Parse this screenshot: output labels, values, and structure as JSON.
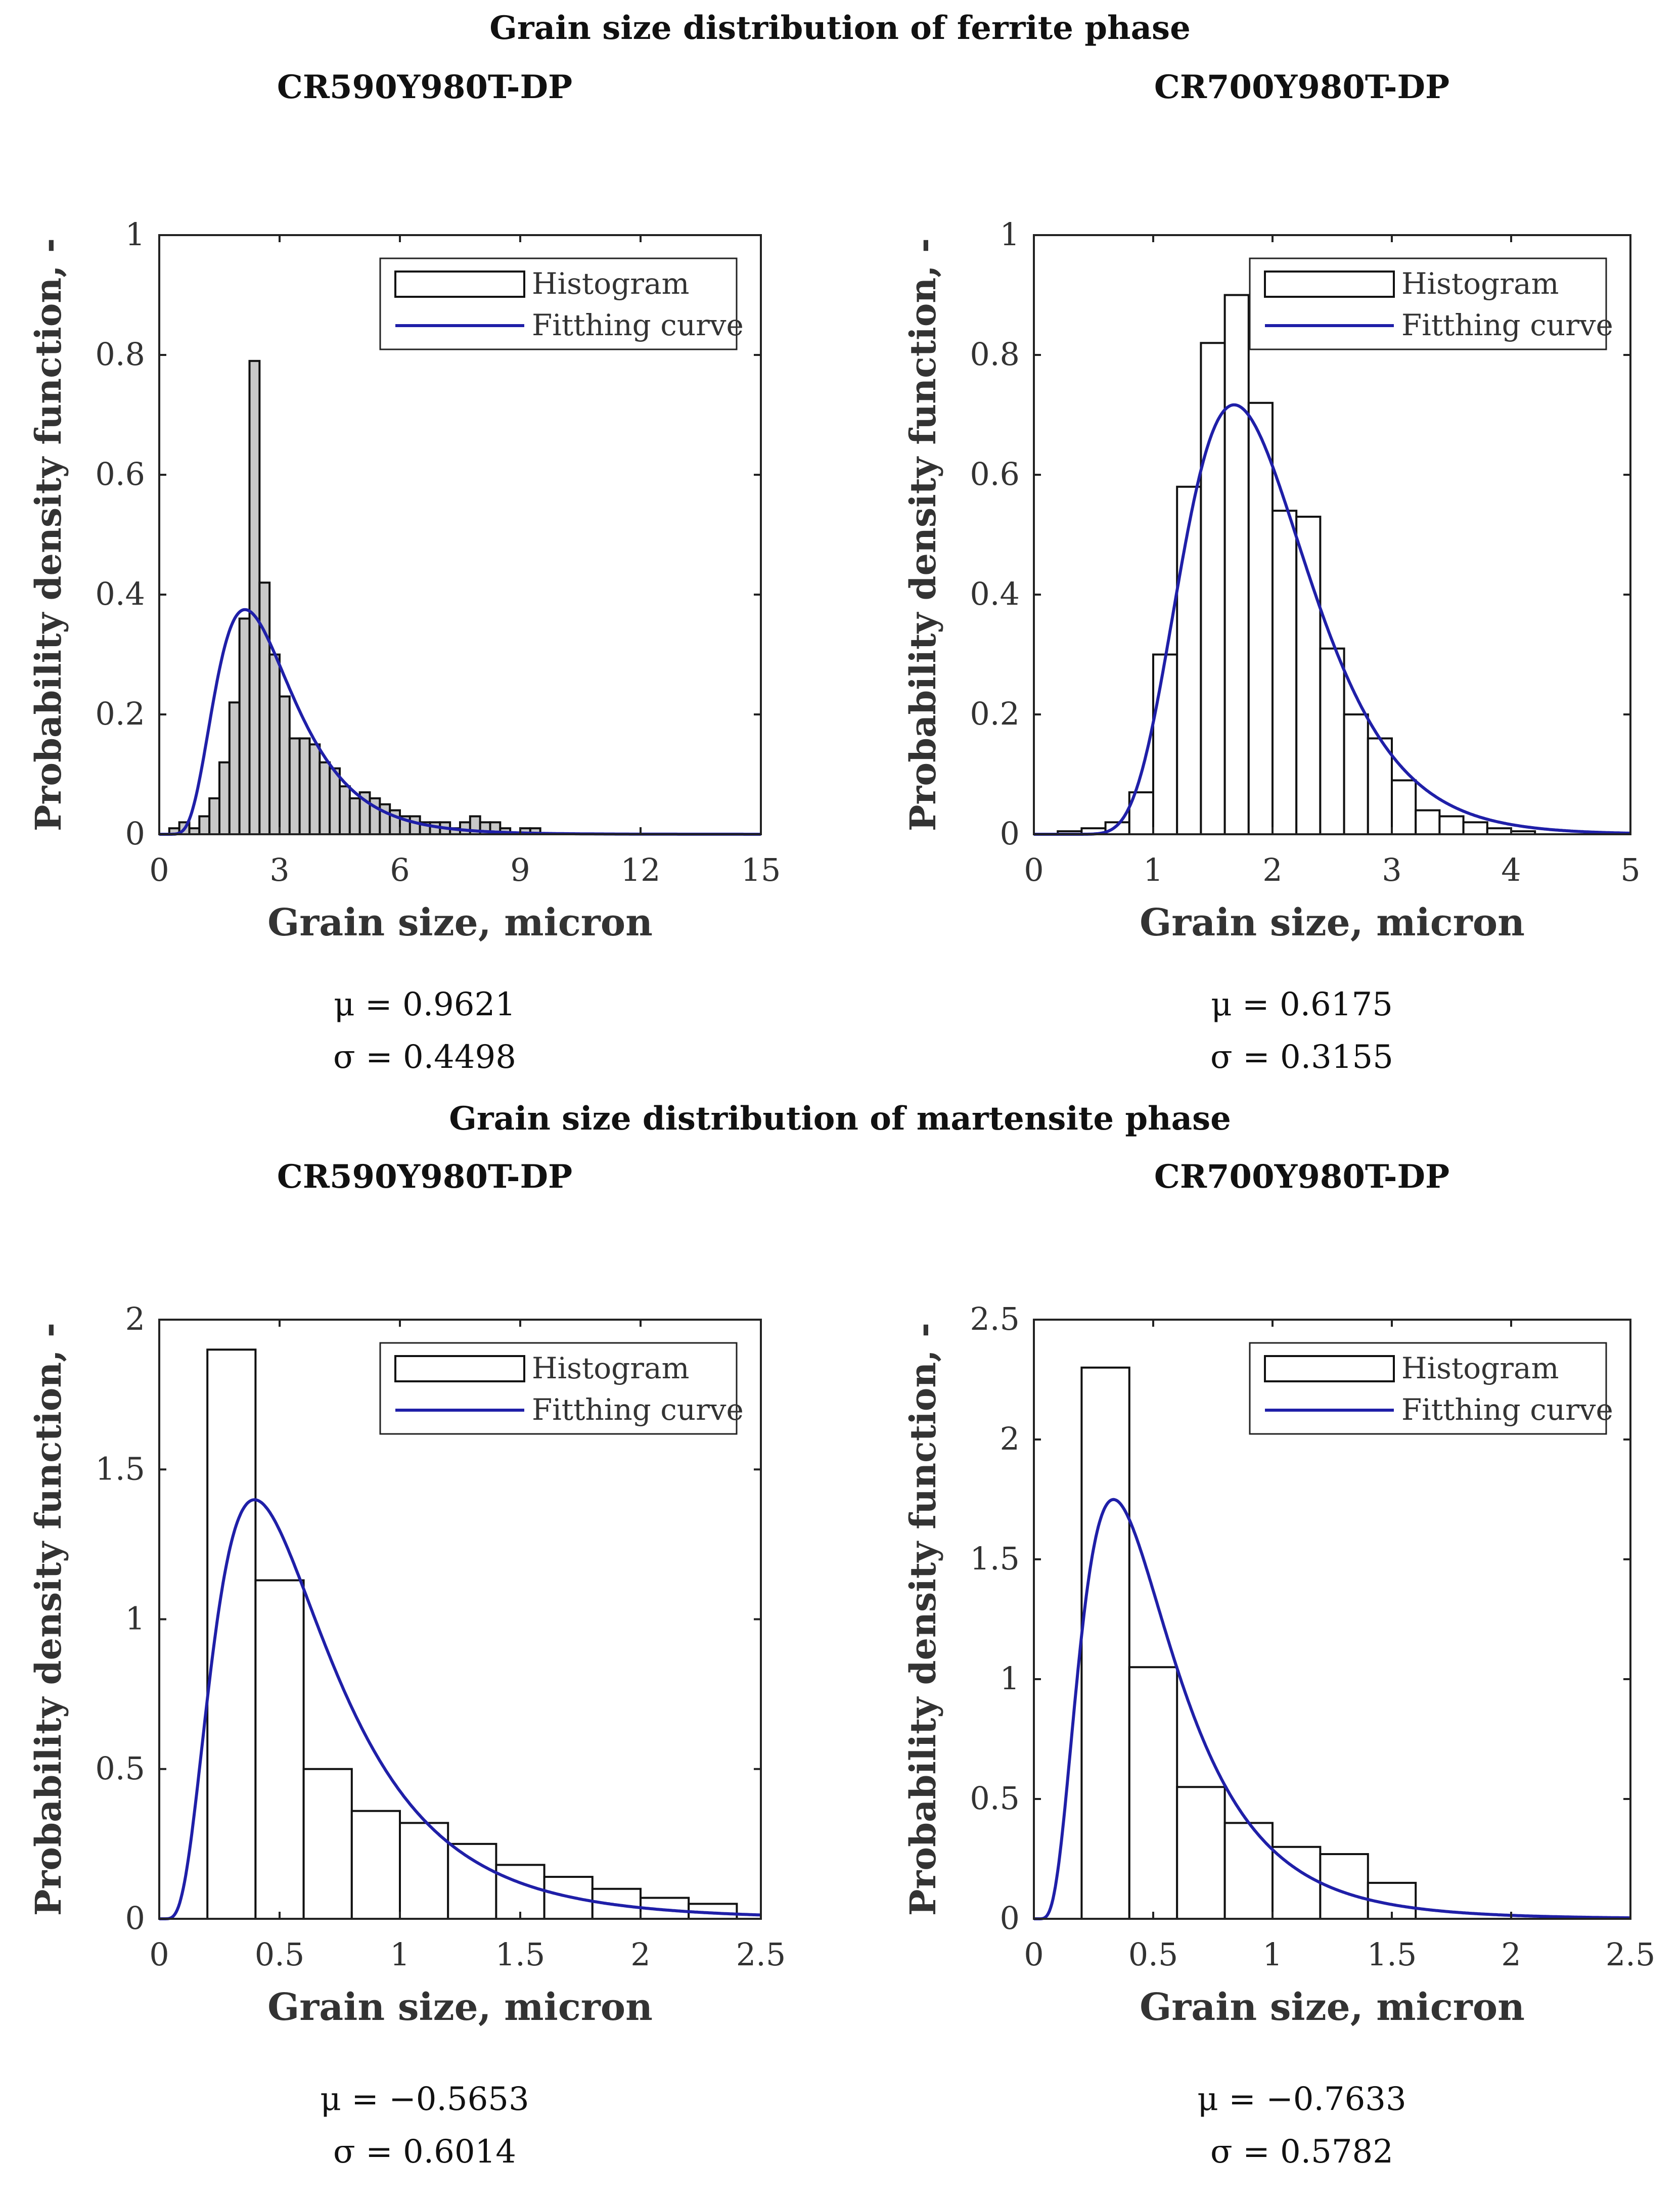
{
  "headings": {
    "ferrite": "Grain size distribution of ferrite phase",
    "martensite": "Grain size distribution of martensite phase"
  },
  "colors": {
    "curve": "#1f1fa8",
    "bar_fill_dense": "#c8c8c8",
    "bar_fill": "#ffffff",
    "frame": "#222222"
  },
  "chart_data": [
    {
      "type": "bar",
      "panel_title": "CR590Y980T-DP",
      "xlabel": "Grain size, micron",
      "ylabel": "Probability density function, -",
      "xlim": [
        0,
        15
      ],
      "ylim": [
        0,
        1
      ],
      "xticks": [
        "0",
        "3",
        "6",
        "9",
        "12",
        "15"
      ],
      "yticks": [
        "0",
        "0.2",
        "0.4",
        "0.6",
        "0.8",
        "1"
      ],
      "legend": [
        "Histogram",
        "Fitthing curve"
      ],
      "legend_position": "top-right",
      "bin_width": 0.25,
      "bins": [
        [
          0.25,
          0.01
        ],
        [
          0.5,
          0.02
        ],
        [
          0.75,
          0.01
        ],
        [
          1.0,
          0.03
        ],
        [
          1.25,
          0.06
        ],
        [
          1.5,
          0.12
        ],
        [
          1.75,
          0.22
        ],
        [
          2.0,
          0.36
        ],
        [
          2.25,
          0.79
        ],
        [
          2.5,
          0.42
        ],
        [
          2.75,
          0.3
        ],
        [
          3.0,
          0.23
        ],
        [
          3.25,
          0.16
        ],
        [
          3.5,
          0.16
        ],
        [
          3.75,
          0.15
        ],
        [
          4.0,
          0.12
        ],
        [
          4.25,
          0.11
        ],
        [
          4.5,
          0.08
        ],
        [
          4.75,
          0.06
        ],
        [
          5.0,
          0.07
        ],
        [
          5.25,
          0.06
        ],
        [
          5.5,
          0.05
        ],
        [
          5.75,
          0.04
        ],
        [
          6.0,
          0.03
        ],
        [
          6.25,
          0.03
        ],
        [
          6.5,
          0.02
        ],
        [
          6.75,
          0.02
        ],
        [
          7.0,
          0.02
        ],
        [
          7.25,
          0.01
        ],
        [
          7.5,
          0.02
        ],
        [
          7.75,
          0.03
        ],
        [
          8.0,
          0.02
        ],
        [
          8.25,
          0.02
        ],
        [
          8.5,
          0.01
        ],
        [
          9.0,
          0.01
        ],
        [
          9.25,
          0.01
        ]
      ],
      "fit": {
        "distribution": "lognormal",
        "mu": 0.9621,
        "sigma": 0.4498
      },
      "params": {
        "mu_text": "μ = 0.9621",
        "sigma_text": "σ = 0.4498"
      }
    },
    {
      "type": "bar",
      "panel_title": "CR700Y980T-DP",
      "xlabel": "Grain size, micron",
      "ylabel": "Probability density function, -",
      "xlim": [
        0,
        5
      ],
      "ylim": [
        0,
        1
      ],
      "xticks": [
        "0",
        "1",
        "2",
        "3",
        "4",
        "5"
      ],
      "yticks": [
        "0",
        "0.2",
        "0.4",
        "0.6",
        "0.8",
        "1"
      ],
      "legend": [
        "Histogram",
        "Fitthing curve"
      ],
      "legend_position": "top-right",
      "bin_width": 0.2,
      "bins": [
        [
          0.2,
          0.005
        ],
        [
          0.4,
          0.01
        ],
        [
          0.6,
          0.02
        ],
        [
          0.8,
          0.07
        ],
        [
          1.0,
          0.3
        ],
        [
          1.2,
          0.58
        ],
        [
          1.4,
          0.82
        ],
        [
          1.6,
          0.9
        ],
        [
          1.8,
          0.72
        ],
        [
          2.0,
          0.54
        ],
        [
          2.2,
          0.53
        ],
        [
          2.4,
          0.31
        ],
        [
          2.6,
          0.2
        ],
        [
          2.8,
          0.16
        ],
        [
          3.0,
          0.09
        ],
        [
          3.2,
          0.04
        ],
        [
          3.4,
          0.03
        ],
        [
          3.6,
          0.02
        ],
        [
          3.8,
          0.01
        ],
        [
          4.0,
          0.005
        ]
      ],
      "fit": {
        "distribution": "lognormal",
        "mu": 0.6175,
        "sigma": 0.3155
      },
      "params": {
        "mu_text": "μ = 0.6175",
        "sigma_text": "σ = 0.3155"
      }
    },
    {
      "type": "bar",
      "panel_title": "CR590Y980T-DP",
      "xlabel": "Grain size, micron",
      "ylabel": "Probability density function, -",
      "xlim": [
        0,
        2.5
      ],
      "ylim": [
        0,
        2
      ],
      "xticks": [
        "0",
        "0.5",
        "1",
        "1.5",
        "2",
        "2.5"
      ],
      "yticks": [
        "0",
        "0.5",
        "1",
        "1.5",
        "2"
      ],
      "legend": [
        "Histogram",
        "Fitthing curve"
      ],
      "legend_position": "top-right",
      "bin_width": 0.2,
      "bins": [
        [
          0.2,
          1.9
        ],
        [
          0.4,
          1.13
        ],
        [
          0.6,
          0.5
        ],
        [
          0.8,
          0.36
        ],
        [
          1.0,
          0.32
        ],
        [
          1.2,
          0.25
        ],
        [
          1.4,
          0.18
        ],
        [
          1.6,
          0.14
        ],
        [
          1.8,
          0.1
        ],
        [
          2.0,
          0.07
        ],
        [
          2.2,
          0.05
        ]
      ],
      "fit": {
        "distribution": "lognormal",
        "mu": -0.5653,
        "sigma": 0.6014
      },
      "params": {
        "mu_text": "μ = −0.5653",
        "sigma_text": "σ = 0.6014"
      }
    },
    {
      "type": "bar",
      "panel_title": "CR700Y980T-DP",
      "xlabel": "Grain size, micron",
      "ylabel": "Probability density function, -",
      "xlim": [
        0,
        2.5
      ],
      "ylim": [
        0,
        2.5
      ],
      "xticks": [
        "0",
        "0.5",
        "1",
        "1.5",
        "2",
        "2.5"
      ],
      "yticks": [
        "0",
        "0.5",
        "1",
        "1.5",
        "2",
        "2.5"
      ],
      "legend": [
        "Histogram",
        "Fitthing curve"
      ],
      "legend_position": "top-right",
      "bin_width": 0.2,
      "bins": [
        [
          0.2,
          2.3
        ],
        [
          0.4,
          1.05
        ],
        [
          0.6,
          0.55
        ],
        [
          0.8,
          0.4
        ],
        [
          1.0,
          0.3
        ],
        [
          1.2,
          0.27
        ],
        [
          1.4,
          0.15
        ]
      ],
      "fit": {
        "distribution": "lognormal",
        "mu": -0.7633,
        "sigma": 0.5782
      },
      "params": {
        "mu_text": "μ = −0.7633",
        "sigma_text": "σ = 0.5782"
      }
    }
  ]
}
